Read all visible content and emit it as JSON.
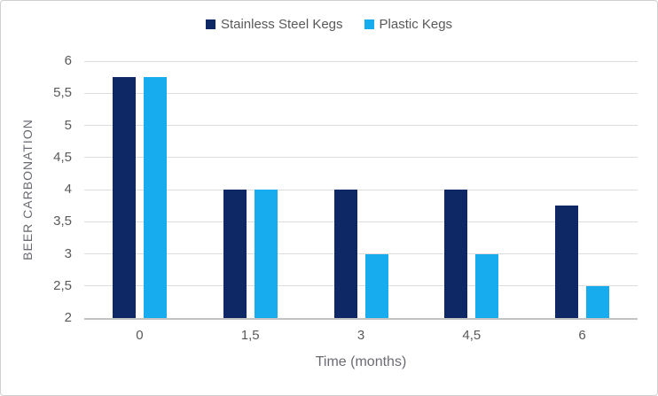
{
  "window": {
    "background": "#ffffff",
    "border_color": "#cfcfcf"
  },
  "chart_data": {
    "type": "bar",
    "categories": [
      "0",
      "1,5",
      "3",
      "4,5",
      "6"
    ],
    "category_values": [
      0,
      1.5,
      3,
      4.5,
      6
    ],
    "series": [
      {
        "name": "Stainless Steel Kegs",
        "color": "#0E2765",
        "values": [
          5.75,
          4,
          4,
          4,
          3.75
        ]
      },
      {
        "name": "Plastic Kegs",
        "color": "#17ACEE",
        "values": [
          5.75,
          4,
          3,
          3,
          2.5
        ]
      }
    ],
    "title": "",
    "xlabel": "Time (months)",
    "ylabel": "BEER CARBONATION",
    "ylim": [
      2,
      6
    ],
    "yticks": [
      {
        "label": "6",
        "value": 6
      },
      {
        "label": "5,5",
        "value": 5.5
      },
      {
        "label": "5",
        "value": 5
      },
      {
        "label": "4,5",
        "value": 4.5
      },
      {
        "label": "4",
        "value": 4
      },
      {
        "label": "3,5",
        "value": 3.5
      },
      {
        "label": "3",
        "value": 3
      },
      {
        "label": "2,5",
        "value": 2.5
      },
      {
        "label": "2",
        "value": 2
      }
    ],
    "grid": "horizontal",
    "legend_position": "top",
    "colors": {
      "gridline": "#DCDCDC",
      "axis_line": "#C3C3C3",
      "tick_text": "#595959",
      "axis_title_text": "#6B6B73"
    }
  }
}
